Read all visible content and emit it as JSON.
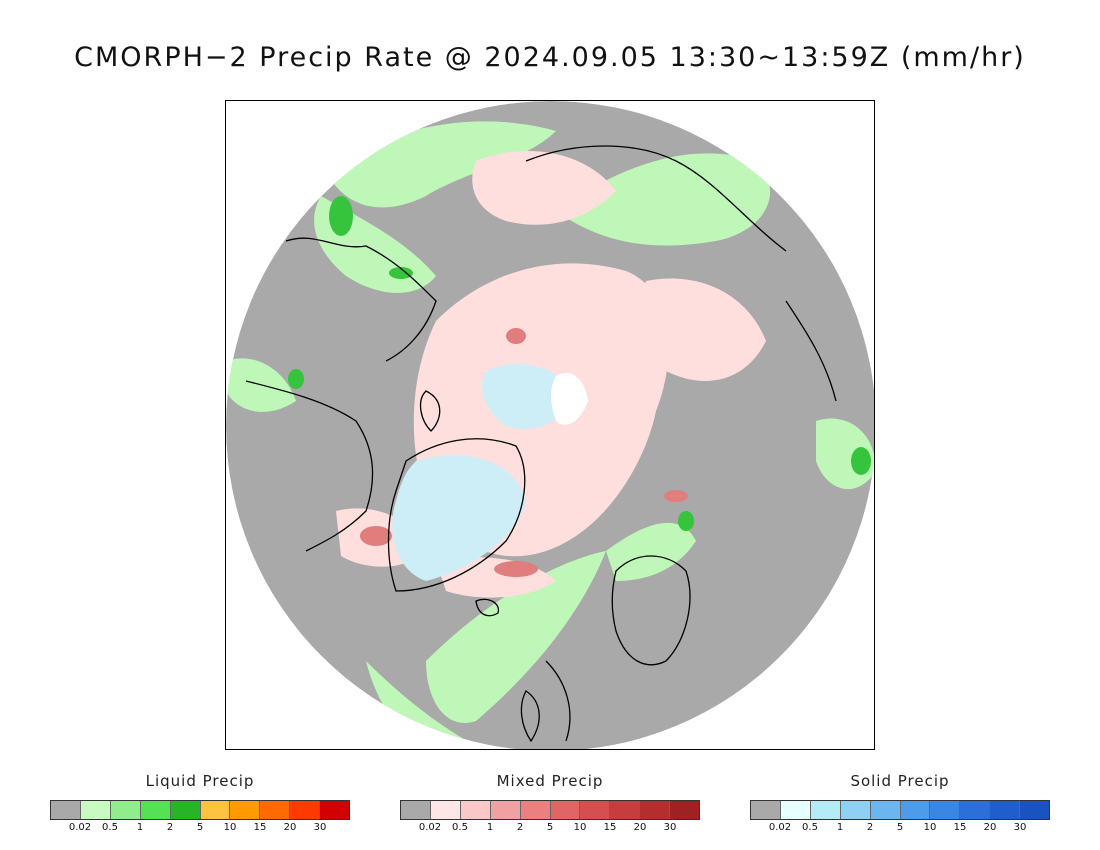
{
  "title": "CMORPH−2 Precip Rate @ 2024.09.05 13:30~13:59Z (mm/hr)",
  "map": {
    "projection": "north-polar-stereographic",
    "background_color": "#a9a9a9",
    "liquid_light": "#bef7b7",
    "liquid_mid": "#8ee88a",
    "liquid_dark": "#36c43c",
    "mixed_light": "#ffdede",
    "mixed_mid": "#f4b5b5",
    "mixed_dark": "#e07d7d",
    "solid_light": "#cdeef7",
    "solid_white": "#ffffff",
    "coastline_color": "#000000"
  },
  "legends": [
    {
      "title": "Liquid Precip",
      "colors": [
        "#a9a9a9",
        "#c7fbc0",
        "#91ec8c",
        "#56e056",
        "#27b527",
        "#ffc341",
        "#ff9a00",
        "#ff6a00",
        "#ff3a00",
        "#d40000"
      ],
      "ticks": [
        "0.02",
        "0.5",
        "1",
        "2",
        "5",
        "10",
        "15",
        "20",
        "30"
      ]
    },
    {
      "title": "Mixed Precip",
      "colors": [
        "#a9a9a9",
        "#ffe6e6",
        "#fbc8c8",
        "#f1a1a1",
        "#ea8080",
        "#e06666",
        "#d45050",
        "#c53d3d",
        "#b52e2e",
        "#9e2222"
      ],
      "ticks": [
        "0.02",
        "0.5",
        "1",
        "2",
        "5",
        "10",
        "15",
        "20",
        "30"
      ]
    },
    {
      "title": "Solid Precip",
      "colors": [
        "#a9a9a9",
        "#e6ffff",
        "#b3ecf7",
        "#8fd0f5",
        "#6bb6f0",
        "#4d9cea",
        "#3a86e3",
        "#2a70d8",
        "#1f5fcc",
        "#1a52c0"
      ],
      "ticks": [
        "0.02",
        "0.5",
        "1",
        "2",
        "5",
        "10",
        "15",
        "20",
        "30"
      ]
    }
  ]
}
